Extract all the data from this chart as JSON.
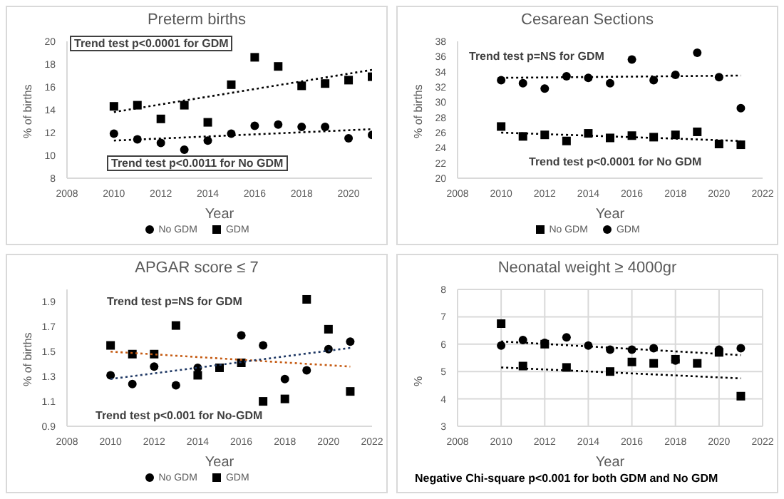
{
  "chart_data": [
    {
      "type": "scatter",
      "title": "Preterm births",
      "xlabel": "Year",
      "ylabel": "% of births",
      "xlim": [
        2008,
        2021
      ],
      "xticks": [
        2008,
        2010,
        2012,
        2014,
        2016,
        2018,
        2020
      ],
      "ylim": [
        8,
        20
      ],
      "yticks": [
        8,
        10,
        12,
        14,
        16,
        18,
        20
      ],
      "legend": "bottom",
      "annotations": [
        "Trend test p<0.0001 for GDM",
        "Trend test p<0.0011 for No GDM"
      ],
      "series": [
        {
          "name": "No GDM",
          "marker": "circle",
          "color": "#000000",
          "x": [
            2010,
            2011,
            2012,
            2013,
            2014,
            2015,
            2016,
            2017,
            2018,
            2019,
            2020,
            2021
          ],
          "values": [
            11.9,
            11.4,
            11.1,
            10.5,
            11.3,
            11.9,
            12.6,
            12.7,
            12.5,
            12.5,
            11.5,
            11.8
          ]
        },
        {
          "name": "GDM",
          "marker": "square",
          "color": "#000000",
          "x": [
            2010,
            2011,
            2012,
            2013,
            2014,
            2015,
            2016,
            2017,
            2018,
            2019,
            2020,
            2021
          ],
          "values": [
            14.3,
            14.4,
            13.2,
            14.4,
            12.9,
            16.2,
            18.6,
            17.8,
            16.1,
            16.3,
            16.6,
            16.9
          ]
        },
        {
          "type": "line",
          "line_style": "dotted",
          "color": "#000000",
          "x": [
            2010,
            2021
          ],
          "values": [
            13.8,
            17.5
          ]
        },
        {
          "type": "line",
          "line_style": "dotted",
          "color": "#000000",
          "x": [
            2010,
            2021
          ],
          "values": [
            11.3,
            12.3
          ]
        }
      ]
    },
    {
      "type": "scatter",
      "title": "Cesarean Sections",
      "xlabel": "Year",
      "ylabel": "% of births",
      "xlim": [
        2008,
        2022
      ],
      "xticks": [
        2008,
        2010,
        2012,
        2014,
        2016,
        2018,
        2020,
        2022
      ],
      "ylim": [
        20,
        38
      ],
      "yticks": [
        20,
        22,
        24,
        26,
        28,
        30,
        32,
        34,
        36,
        38
      ],
      "legend": "bottom",
      "annotations": [
        "Trend test p=NS for GDM",
        "Trend test  p<0.0001 for No GDM"
      ],
      "series": [
        {
          "name": "No GDM",
          "marker": "square",
          "color": "#000000",
          "x": [
            2010,
            2011,
            2012,
            2013,
            2014,
            2015,
            2016,
            2017,
            2018,
            2019,
            2020,
            2021
          ],
          "values": [
            26.8,
            25.5,
            25.7,
            24.9,
            25.9,
            25.3,
            25.6,
            25.4,
            25.7,
            26.1,
            24.5,
            24.4
          ]
        },
        {
          "name": "GDM",
          "marker": "circle",
          "color": "#000000",
          "x": [
            2010,
            2011,
            2012,
            2013,
            2014,
            2015,
            2016,
            2017,
            2018,
            2019,
            2020,
            2021
          ],
          "values": [
            32.9,
            32.5,
            31.8,
            33.4,
            33.2,
            32.5,
            35.6,
            32.9,
            33.6,
            36.5,
            33.3,
            29.2
          ]
        },
        {
          "type": "line",
          "line_style": "dotted",
          "color": "#000000",
          "x": [
            2010,
            2021
          ],
          "values": [
            33.2,
            33.5
          ]
        },
        {
          "type": "line",
          "line_style": "dotted",
          "color": "#000000",
          "x": [
            2010,
            2021
          ],
          "values": [
            26,
            24.9
          ]
        }
      ]
    },
    {
      "type": "scatter",
      "title": "APGAR score ≤ 7",
      "xlabel": "Year",
      "ylabel": "% of births",
      "xlim": [
        2008,
        2022
      ],
      "xticks": [
        2008,
        2010,
        2012,
        2014,
        2016,
        2018,
        2020,
        2022
      ],
      "ylim": [
        0.9,
        2
      ],
      "yticks": [
        0.9,
        1.1,
        1.3,
        1.5,
        1.7,
        1.9
      ],
      "legend": "bottom",
      "annotations": [
        "Trend test p=NS for GDM",
        "Trend test p<0.001 for No-GDM"
      ],
      "series": [
        {
          "name": "No GDM",
          "marker": "circle",
          "color": "#000000",
          "x": [
            2010,
            2011,
            2012,
            2013,
            2014,
            2015,
            2016,
            2017,
            2018,
            2019,
            2020,
            2021
          ],
          "values": [
            1.31,
            1.24,
            1.38,
            1.23,
            1.37,
            null,
            1.63,
            1.55,
            1.28,
            1.35,
            1.52,
            1.58
          ]
        },
        {
          "name": "GDM",
          "marker": "square",
          "color": "#000000",
          "x": [
            2010,
            2011,
            2012,
            2013,
            2014,
            2015,
            2016,
            2017,
            2018,
            2019,
            2020,
            2021
          ],
          "values": [
            1.55,
            1.48,
            1.48,
            1.71,
            1.31,
            1.37,
            1.41,
            1.1,
            1.12,
            1.92,
            1.68,
            1.18
          ]
        },
        {
          "type": "line",
          "line_style": "dotted",
          "color": "#c55a11",
          "x": [
            2010,
            2021
          ],
          "values": [
            1.5,
            1.38
          ]
        },
        {
          "type": "line",
          "line_style": "dotted",
          "color": "#1f3864",
          "x": [
            2010,
            2021
          ],
          "values": [
            1.28,
            1.53
          ]
        }
      ]
    },
    {
      "type": "scatter",
      "title": "Neonatal weight ≥ 4000gr",
      "xlabel": "Year",
      "ylabel": "%",
      "xlim": [
        2008,
        2022
      ],
      "xticks": [
        2008,
        2010,
        2012,
        2014,
        2016,
        2018,
        2020,
        2022
      ],
      "ylim": [
        3,
        8
      ],
      "yticks": [
        3,
        4,
        5,
        6,
        7,
        8
      ],
      "grid": true,
      "annotations": [
        "Negative Chi-square p<0.001 for both GDM and No GDM"
      ],
      "series": [
        {
          "marker": "square",
          "color": "#000000",
          "x": [
            2010,
            2011,
            2012,
            2013,
            2015,
            2016,
            2017,
            2018,
            2019,
            2020,
            2021
          ],
          "values": [
            6.75,
            5.2,
            6,
            5.15,
            5,
            5.35,
            5.3,
            5.45,
            5.3,
            5.7,
            4.1
          ]
        },
        {
          "marker": "circle",
          "color": "#000000",
          "x": [
            2010,
            2011,
            2012,
            2013,
            2014,
            2015,
            2016,
            2017,
            2018,
            2020,
            2021
          ],
          "values": [
            5.95,
            6.15,
            6.05,
            6.25,
            5.95,
            5.8,
            5.8,
            5.85,
            5.4,
            5.8,
            5.85
          ]
        },
        {
          "type": "line",
          "line_style": "dotted",
          "color": "#000000",
          "x": [
            2010,
            2021
          ],
          "values": [
            6.1,
            5.6
          ]
        },
        {
          "type": "line",
          "line_style": "dotted",
          "color": "#000000",
          "x": [
            2010,
            2021
          ],
          "values": [
            5.15,
            4.75
          ]
        }
      ]
    }
  ]
}
